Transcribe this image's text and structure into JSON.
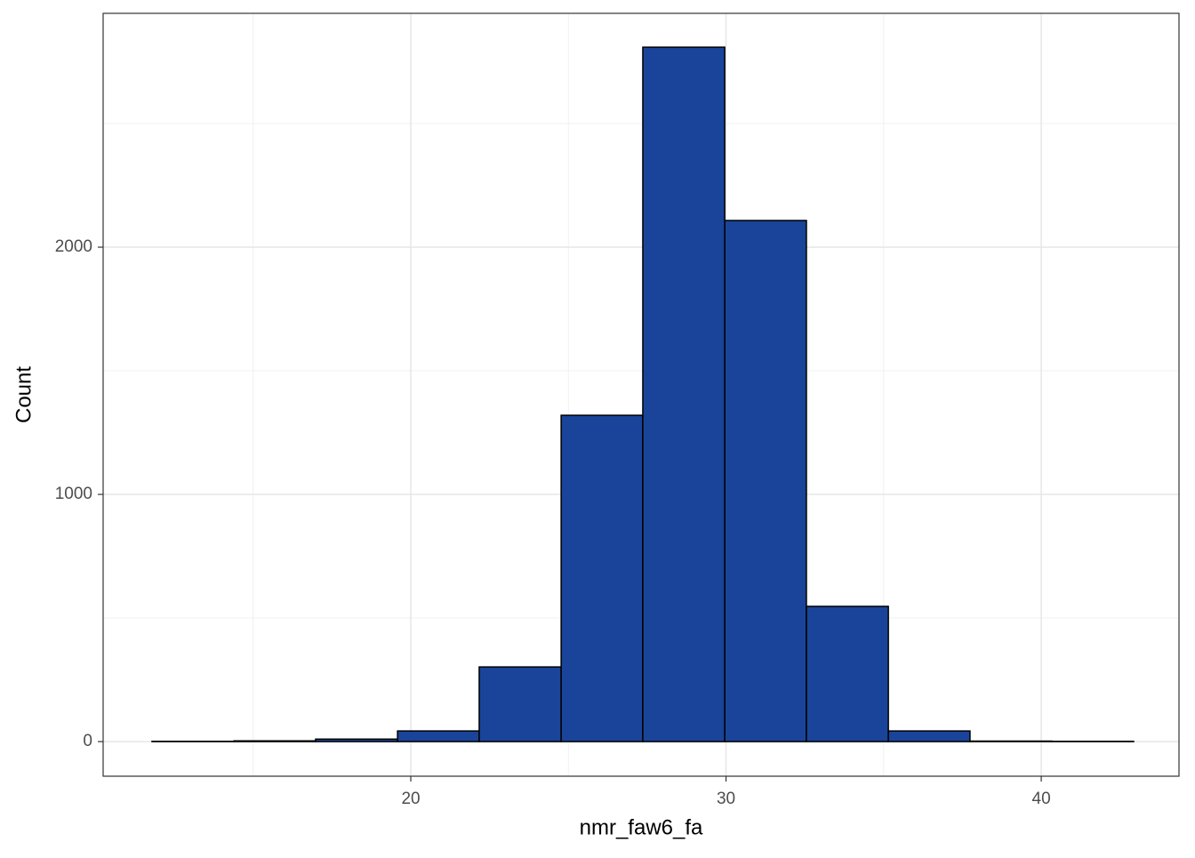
{
  "chart_data": {
    "type": "histogram",
    "x_label": "nmr_faw6_fa",
    "y_label": "Count",
    "bins": [
      11.79,
      14.39,
      16.98,
      19.58,
      22.17,
      24.77,
      27.36,
      29.96,
      32.55,
      35.15,
      37.74,
      40.34,
      42.93
    ],
    "values": [
      1,
      3,
      10,
      43,
      302,
      1320,
      2809,
      2108,
      547,
      43,
      2,
      1
    ],
    "color": "#1a4499",
    "edge_color": "#000000",
    "xlim": [
      10.24,
      44.37
    ],
    "ylim": [
      -140,
      2946
    ],
    "xticks": [
      20,
      30,
      40
    ],
    "yticks": [
      0,
      1000,
      2000
    ],
    "x_minor_ticks": [
      15,
      25,
      35
    ],
    "y_minor_ticks": [
      500,
      1500,
      2500
    ],
    "grid": true
  }
}
